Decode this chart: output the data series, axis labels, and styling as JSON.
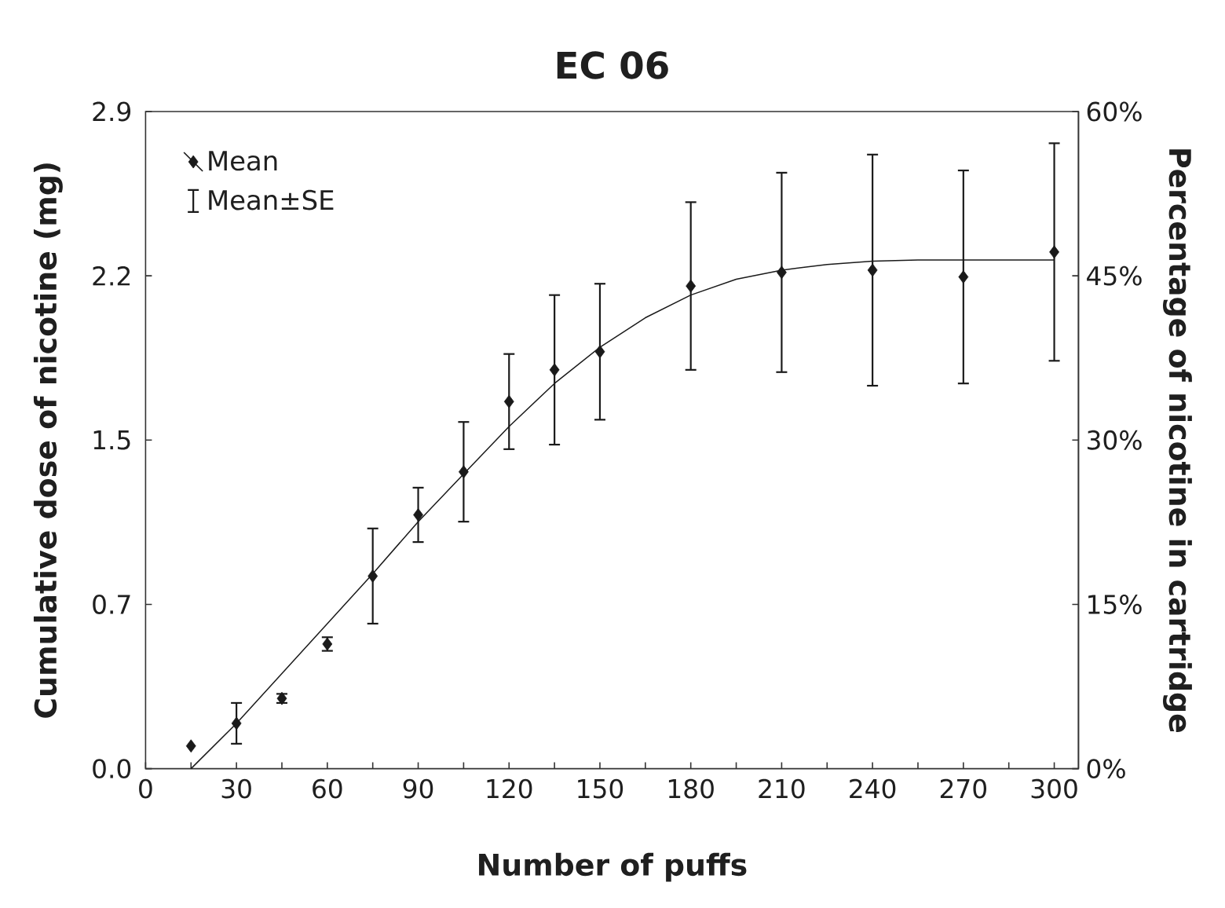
{
  "chart_data": {
    "type": "scatter",
    "title": "EC 06",
    "xlabel": "Number of puffs",
    "ylabel": "Cumulative dose of nicotine (mg)",
    "y2label": "Percentage of nicotine in cartridge",
    "annotations": [
      "Mean±SE"
    ],
    "xlim": [
      0,
      308
    ],
    "xticks": [
      0,
      {
        "value": 15,
        "label": null
      },
      30,
      {
        "value": 45,
        "label": null
      },
      60,
      {
        "value": 75,
        "label": null
      },
      90,
      {
        "value": 105,
        "label": null
      },
      120,
      {
        "value": 135,
        "label": null
      },
      150,
      {
        "value": 165,
        "label": null
      },
      180,
      {
        "value": 195,
        "label": null
      },
      210,
      {
        "value": 225,
        "label": null
      },
      240,
      {
        "value": 255,
        "label": null
      },
      270,
      {
        "value": 285,
        "label": null
      },
      300
    ],
    "ylim": [
      0,
      2.9
    ],
    "yticks": [
      {
        "value": 0,
        "label": "0.0"
      },
      {
        "value": 0.725,
        "label": "0.7"
      },
      {
        "value": 1.45,
        "label": "1.5"
      },
      {
        "value": 2.175,
        "label": "2.2"
      },
      {
        "value": 2.9,
        "label": "2.9"
      }
    ],
    "y2lim": [
      0,
      60
    ],
    "y2ticks": [
      {
        "value": 0,
        "label": "0%"
      },
      {
        "value": 15,
        "label": "15%"
      },
      {
        "value": 30,
        "label": "30%"
      },
      {
        "value": 45,
        "label": "45%"
      },
      {
        "value": 60,
        "label": "60%"
      }
    ],
    "legend": "top left",
    "series": [
      {
        "type": "line",
        "color": "#1a1a1a",
        "line_style": "solid",
        "x": [
          15,
          30,
          45,
          60,
          75,
          90,
          105,
          120,
          135,
          150,
          165,
          180,
          195,
          210,
          225,
          240,
          255,
          270,
          285,
          300
        ],
        "values": [
          0,
          0.2,
          0.42,
          0.64,
          0.86,
          1.09,
          1.3,
          1.51,
          1.7,
          1.86,
          1.99,
          2.09,
          2.16,
          2.2,
          2.225,
          2.24,
          2.245,
          2.245,
          2.245,
          2.245
        ]
      },
      {
        "name": "Mean",
        "type": "scatter",
        "marker": "diamond",
        "color": "#1a1a1a",
        "x": [
          15,
          30,
          45,
          60,
          75,
          90,
          105,
          120,
          135,
          150,
          180,
          210,
          240,
          270,
          300
        ],
        "values": [
          0.1,
          0.2,
          0.31,
          0.55,
          0.85,
          1.12,
          1.31,
          1.62,
          1.76,
          1.84,
          2.13,
          2.19,
          2.2,
          2.17,
          2.28
        ],
        "errors": [
          null,
          0.09,
          0.02,
          0.03,
          0.21,
          0.12,
          0.22,
          0.21,
          0.33,
          0.3,
          0.37,
          0.44,
          0.51,
          0.47,
          0.48
        ]
      }
    ]
  }
}
